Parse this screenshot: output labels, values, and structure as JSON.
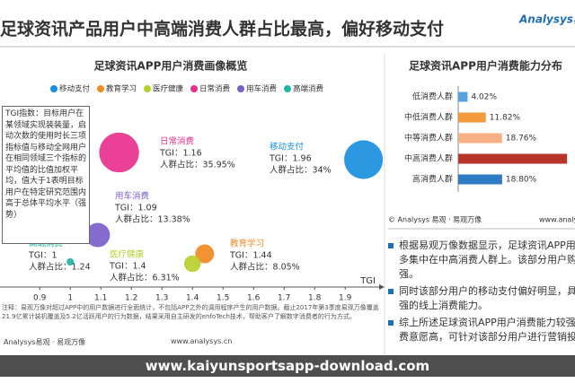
{
  "header": {
    "title": "足球资讯产品用户中高端消费人群占比最高，偏好移动支付",
    "logo": "Analysys易观"
  },
  "chart_data": [
    {
      "type": "bubble",
      "title": "足球资讯APP用户消费画像概览",
      "x_label": "TGI",
      "xlim": [
        0.77,
        2.02
      ],
      "xticks": [
        0.9,
        1,
        1.1,
        1.2,
        1.3,
        1.4,
        1.5,
        1.6,
        1.7,
        1.8,
        1.9
      ],
      "note": "TGI指数：目标用户在某领域实现装装量，启动次数的使用时长三项指标值与移动全网用户在相同领域三个指标的平均值的比值加权平均，值大于1表明目标用户在特定研究范围内高于总体平均水平（强势）",
      "series": [
        {
          "name": "移动支付",
          "color": "#1a8fe0",
          "x": [
            1.96
          ],
          "values": [
            34
          ],
          "x_labels": [
            "TGI：1.96"
          ],
          "value_labels": [
            "人群占比：34%"
          ]
        },
        {
          "name": "教育学习",
          "color": "#f08a24",
          "x": [
            1.44
          ],
          "values": [
            8.05
          ],
          "x_labels": [
            "TGI：1.44"
          ],
          "value_labels": [
            "人群占比：8.05%"
          ]
        },
        {
          "name": "医疗健康",
          "color": "#b8cf2e",
          "x": [
            1.4
          ],
          "values": [
            6.31
          ],
          "x_labels": [
            "TGI：1.4"
          ],
          "value_labels": [
            "人群占比：6.31%"
          ]
        },
        {
          "name": "日常消费",
          "color": "#e8308f",
          "x": [
            1.16
          ],
          "values": [
            35.95
          ],
          "x_labels": [
            "TGI：1.16"
          ],
          "value_labels": [
            "人群占比：35.95%"
          ]
        },
        {
          "name": "用车消费",
          "color": "#7b5fc8",
          "x": [
            1.09
          ],
          "values": [
            13.38
          ],
          "x_labels": [
            "TGI：1.09"
          ],
          "value_labels": [
            "人群占比：13.38%"
          ]
        },
        {
          "name": "高端消费",
          "color": "#1fb5a8",
          "x": [
            1
          ],
          "values": [
            1.24
          ],
          "x_labels": [
            "TGI：1"
          ],
          "value_labels": [
            "人群占比：1.24"
          ]
        }
      ]
    },
    {
      "type": "hbar",
      "title": "足球资讯APP用户消费能力分布",
      "categories": [
        "低消费人群",
        "中低消费人群",
        "中等消费人群",
        "中高消费人群",
        "高消费人群"
      ],
      "values": [
        4.02,
        11.82,
        18.76,
        46.6,
        18.8
      ],
      "value_labels": [
        "4.02%",
        "11.82%",
        "18.76%",
        null,
        "18.80%"
      ],
      "colors": [
        "#5ba3dc",
        "#f39a3d",
        "#f6b083",
        "#b8352c",
        "#2e7bc4"
      ],
      "xlim": [
        0,
        50
      ],
      "source": "© Analysys 易观 · 易观万像",
      "site": "www.analysys.cn"
    }
  ],
  "notes": {
    "footnote": "注释：易观万像对超过APP中的用户数据进行全面统计，不包括APP之外的调用程序产生的用户数据。截止2017年第3季度易观万像覆盖21.9亿累计装机覆盖及5.2亿活跃用户的行为数据，结果采用自主研发的enfoTech技术，帮助客户了解数字消费者的行为方式。",
    "source": "Analysys易观 · 易观万像",
    "site": "www.analysys.cn",
    "bullets": [
      "根据易观万像数据显示，足球资讯APP用户更多集中在中高消费人群上。该部分用户购买力强。",
      "同时该部分用户的移动支付偏好明显，具有较强的线上消费能力。",
      "综上所述足球资讯APP用户消费能力较强，消费意愿高，可针对该部分用户进行营销投放。"
    ]
  },
  "watermark": "www.kaiyunsportsapp-download.com"
}
